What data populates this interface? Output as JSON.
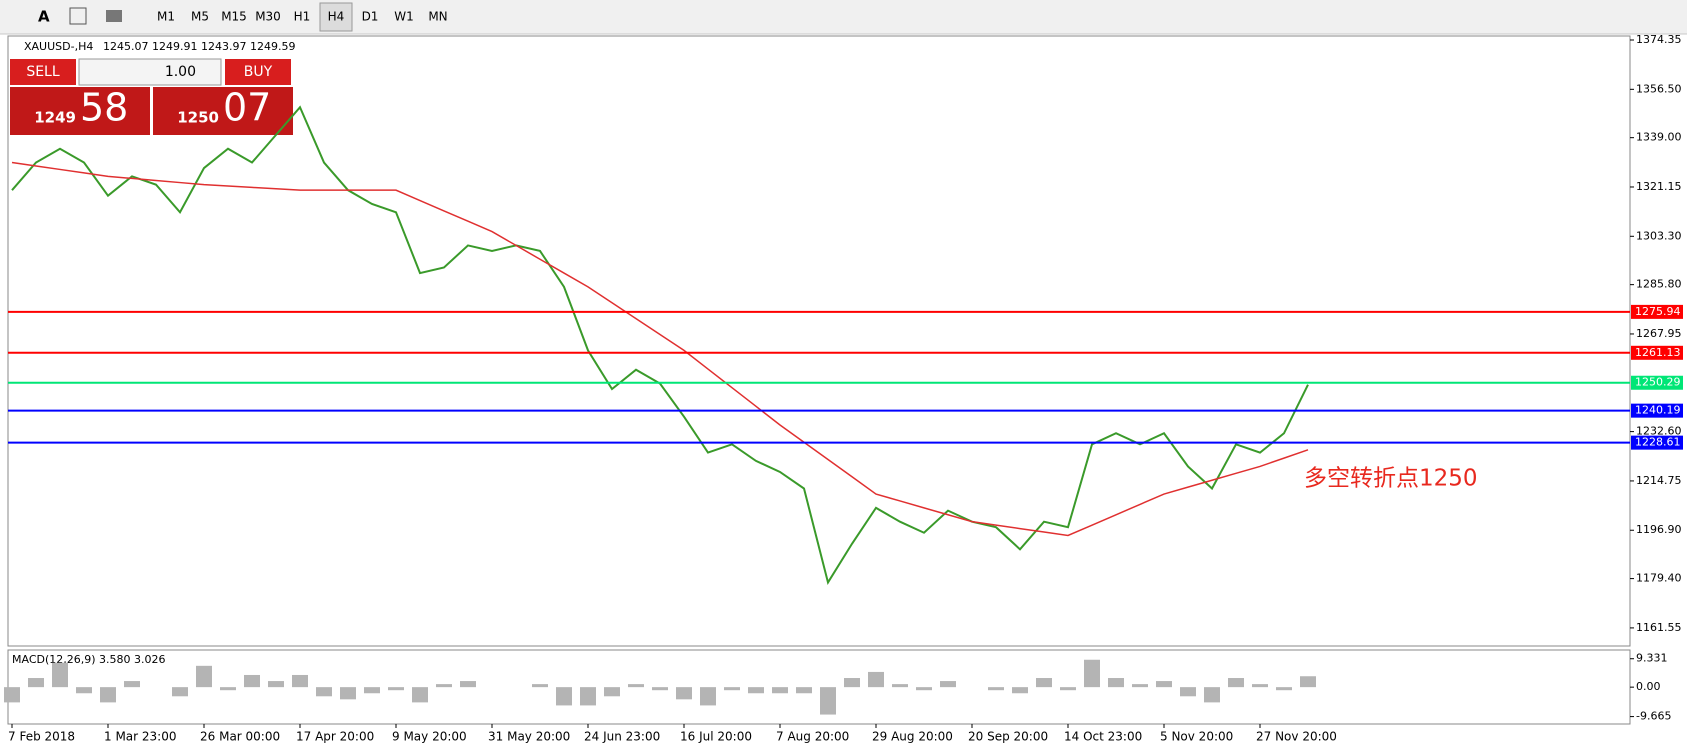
{
  "toolbar": {
    "timeframes": [
      "M1",
      "M5",
      "M15",
      "M30",
      "H1",
      "H4",
      "D1",
      "W1",
      "MN"
    ],
    "active_timeframe": 5
  },
  "header": {
    "symbol": "XAUUSD-,H4",
    "open": "1245.07",
    "high": "1249.91",
    "low": "1243.97",
    "close": "1249.59"
  },
  "trade": {
    "sell": "SELL",
    "buy": "BUY",
    "volume": "1.00",
    "bid_big": "1249",
    "bid_small": "58",
    "ask_big": "1250",
    "ask_small": "07"
  },
  "annotation": "多空转折点1250",
  "chart_data": {
    "type": "line",
    "categories": [
      "7 Feb 2018",
      null,
      null,
      null,
      "1 Mar 23:00",
      null,
      null,
      null,
      "26 Mar 00:00",
      null,
      null,
      null,
      "17 Apr 20:00",
      null,
      null,
      null,
      "9 May 20:00",
      null,
      null,
      null,
      "31 May 20:00",
      null,
      null,
      null,
      "24 Jun 23:00",
      null,
      null,
      null,
      "16 Jul 20:00",
      null,
      null,
      null,
      "7 Aug 20:00",
      null,
      null,
      null,
      "29 Aug 20:00",
      null,
      null,
      null,
      "20 Sep 20:00",
      null,
      null,
      null,
      "14 Oct 23:00",
      null,
      null,
      null,
      "5 Nov 20:00",
      null,
      null,
      null,
      "27 Nov 20:00",
      null,
      null
    ],
    "series": [
      {
        "color": "#3a9a2a",
        "values": [
          1320,
          1330,
          1335,
          1330,
          1318,
          1325,
          1322,
          1312,
          1328,
          1335,
          1330,
          1340,
          1350,
          1330,
          1320,
          1315,
          1312,
          1290,
          1292,
          1300,
          1298,
          1300,
          1298,
          1285,
          1262,
          1248,
          1255,
          1250,
          1238,
          1225,
          1228,
          1222,
          1218,
          1212,
          1178,
          1192,
          1205,
          1200,
          1196,
          1204,
          1200,
          1198,
          1190,
          1200,
          1198,
          1228,
          1232,
          1228,
          1232,
          1220,
          1212,
          1228,
          1225,
          1232,
          1249.59
        ]
      },
      {
        "color": "#e03030",
        "values": [
          1330,
          1328.75,
          1327.5,
          1326.25,
          1325,
          1324.25,
          1323.5,
          1322.75,
          1322,
          1321.5,
          1321,
          1320.5,
          1320,
          1320,
          1320,
          1320,
          1320,
          1316.25,
          1312.5,
          1308.75,
          1305,
          1300,
          1295,
          1290,
          1285,
          1279.25,
          1273.5,
          1267.75,
          1262,
          1255.25,
          1248.5,
          1241.75,
          1235,
          1228.75,
          1222.5,
          1216.25,
          1210,
          1207.5,
          1205,
          1202.5,
          1200,
          1198.75,
          1197.5,
          1196.25,
          1195,
          1198.75,
          1202.5,
          1206.25,
          1210,
          1212.5,
          1215,
          1217.5,
          1220,
          1223,
          1226
        ]
      }
    ],
    "ylim": [
      1155.0,
      1375.8
    ],
    "yticks": [
      {
        "value": 1374.35,
        "label": "1374.35"
      },
      {
        "value": 1356.5,
        "label": "1356.50"
      },
      {
        "value": 1339,
        "label": "1339.00"
      },
      {
        "value": 1321.15,
        "label": "1321.15"
      },
      {
        "value": 1303.3,
        "label": "1303.30"
      },
      {
        "value": 1285.8,
        "label": "1285.80"
      },
      {
        "value": 1267.95,
        "label": "1267.95"
      },
      {
        "value": 1232.6,
        "label": "1232.60"
      },
      {
        "value": 1214.75,
        "label": "1214.75"
      },
      {
        "value": 1196.9,
        "label": "1196.90"
      },
      {
        "value": 1179.4,
        "label": "1179.40"
      },
      {
        "value": 1161.55,
        "label": "1161.55"
      }
    ],
    "levels": [
      {
        "value": 1275.94,
        "color": "#ff0000"
      },
      {
        "value": 1261.13,
        "color": "#ff0000"
      },
      {
        "value": 1250.29,
        "color": "#00e676"
      },
      {
        "value": 1240.19,
        "color": "#0000ff"
      },
      {
        "value": 1228.61,
        "color": "#0000ff"
      }
    ],
    "macd": {
      "label": "MACD(12,26,9) 3.580 3.026",
      "color": "#b4b4b4",
      "values": [
        -5,
        3,
        8,
        -2,
        -5,
        2,
        0,
        -3,
        7,
        -1,
        4,
        2,
        4,
        -3,
        -4,
        -2,
        -1,
        -5,
        1,
        2,
        0,
        0,
        1,
        -6,
        -6,
        -3,
        1,
        -1,
        -4,
        -6,
        -1,
        -2,
        -2,
        -2,
        -9,
        3,
        5,
        1,
        -1,
        2,
        0,
        -1,
        -2,
        3,
        -1,
        9,
        3,
        1,
        2,
        -3,
        -5,
        3,
        1,
        -1,
        3.58
      ],
      "ylim": [
        -12.1,
        12.2
      ],
      "yticks": [
        9.331,
        {
          "value": 0,
          "label": "0.00"
        },
        -9.665
      ]
    }
  }
}
